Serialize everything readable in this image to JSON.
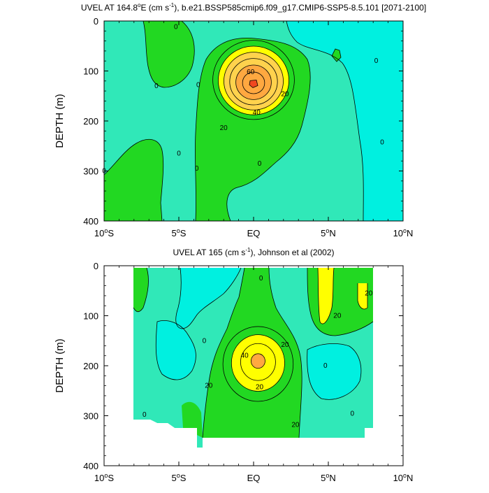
{
  "colors": {
    "cyan": "#00f0e0",
    "teal": "#30e8b8",
    "green_light": "#40e050",
    "green": "#22d822",
    "yellow": "#ffff00",
    "gold": "#ffd24d",
    "orange": "#ffa840",
    "red": "#f04820",
    "line": "#000000",
    "white": "#ffffff"
  },
  "chart_data": [
    {
      "type": "heatmap",
      "subtype": "filled-contour",
      "title_main": "UVEL AT 164.8",
      "title_deg": "o",
      "title_mid": "E (cm s",
      "title_sup": "-1",
      "title_end": "), b.e21.BSSP585cmip6.f09_g17.CMIP6-SSP5-8.5.101 [2071-2100]",
      "ylabel": "DEPTH (m)",
      "xlim": [
        -10,
        10
      ],
      "ylim": [
        400,
        0
      ],
      "yticks": [
        0,
        100,
        200,
        300,
        400
      ],
      "x_tick_labels": [
        {
          "main": "10",
          "sup": "o",
          "end": "S"
        },
        {
          "main": "5",
          "sup": "o",
          "end": "S"
        },
        {
          "main": "EQ",
          "sup": "",
          "end": ""
        },
        {
          "main": "5",
          "sup": "o",
          "end": "N"
        },
        {
          "main": "10",
          "sup": "o",
          "end": "N"
        }
      ],
      "contour_levels": [
        0,
        10,
        20,
        30,
        40,
        50,
        60,
        70
      ],
      "core": {
        "lat": 0.0,
        "depth": 125,
        "max": 70
      },
      "contour_labels": [
        {
          "text": "0",
          "lat": -5.2,
          "depth": 12
        },
        {
          "text": "0",
          "lat": -6.5,
          "depth": 130
        },
        {
          "text": "0",
          "lat": -5.0,
          "depth": 265
        },
        {
          "text": "0",
          "lat": -10.0,
          "depth": 300
        },
        {
          "text": "0",
          "lat": -3.7,
          "depth": 128
        },
        {
          "text": "0",
          "lat": -3.8,
          "depth": 295
        },
        {
          "text": "0",
          "lat": 0.4,
          "depth": 285
        },
        {
          "text": "0",
          "lat": 8.2,
          "depth": 80
        },
        {
          "text": "0",
          "lat": 8.6,
          "depth": 243
        },
        {
          "text": "60",
          "lat": -0.2,
          "depth": 102
        },
        {
          "text": "20",
          "lat": 2.1,
          "depth": 146
        },
        {
          "text": "40",
          "lat": 0.2,
          "depth": 183
        },
        {
          "text": "20",
          "lat": -2.0,
          "depth": 214
        }
      ]
    },
    {
      "type": "heatmap",
      "subtype": "filled-contour",
      "title_main": "UVEL AT 165 (cm s",
      "title_sup": "-1",
      "title_end": "), Johnson et al (2002)",
      "ylabel": "DEPTH (m)",
      "xlim": [
        -10,
        10
      ],
      "ylim": [
        400,
        0
      ],
      "yticks": [
        0,
        100,
        200,
        300,
        400
      ],
      "x_tick_labels": [
        {
          "main": "10",
          "sup": "o",
          "end": "S"
        },
        {
          "main": "5",
          "sup": "o",
          "end": "S"
        },
        {
          "main": "EQ",
          "sup": "",
          "end": ""
        },
        {
          "main": "5",
          "sup": "o",
          "end": "N"
        },
        {
          "main": "10",
          "sup": "o",
          "end": "N"
        }
      ],
      "data_extent": {
        "lat": [
          -8,
          8
        ],
        "depth": [
          5,
          345
        ]
      },
      "contour_levels": [
        0,
        10,
        20,
        30,
        40
      ],
      "core": {
        "lat": 0.3,
        "depth": 190,
        "max": 43
      },
      "contour_labels": [
        {
          "text": "0",
          "lat": 0.5,
          "depth": 25
        },
        {
          "text": "0",
          "lat": -3.3,
          "depth": 150
        },
        {
          "text": "40",
          "lat": -0.6,
          "depth": 180
        },
        {
          "text": "20",
          "lat": 2.1,
          "depth": 158
        },
        {
          "text": "20",
          "lat": -3.0,
          "depth": 240
        },
        {
          "text": "20",
          "lat": 0.4,
          "depth": 243
        },
        {
          "text": "20",
          "lat": 5.6,
          "depth": 100
        },
        {
          "text": "20",
          "lat": 7.7,
          "depth": 55
        },
        {
          "text": "0",
          "lat": 4.8,
          "depth": 200
        },
        {
          "text": "0",
          "lat": -7.3,
          "depth": 298
        },
        {
          "text": "0",
          "lat": 6.6,
          "depth": 296
        },
        {
          "text": "20",
          "lat": 2.8,
          "depth": 318
        }
      ]
    }
  ]
}
